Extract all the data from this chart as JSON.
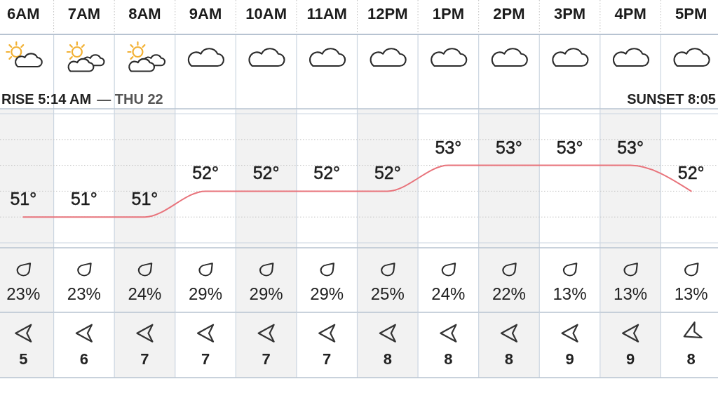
{
  "chart_data": [
    {
      "type": "line",
      "categories": [
        "6AM",
        "7AM",
        "8AM",
        "9AM",
        "10AM",
        "11AM",
        "12PM",
        "1PM",
        "2PM",
        "3PM",
        "4PM",
        "5PM"
      ],
      "values": [
        51,
        51,
        51,
        52,
        52,
        52,
        52,
        53,
        53,
        53,
        53,
        52
      ],
      "value_labels": [
        "51°",
        "51°",
        "51°",
        "52°",
        "52°",
        "52°",
        "52°",
        "53°",
        "53°",
        "53°",
        "53°",
        "52°"
      ],
      "color": "#e8737b",
      "ylim": [
        50,
        55
      ],
      "yticks": [
        {
          "value": 51,
          "label": null
        },
        {
          "value": 52,
          "label": null
        },
        {
          "value": 53,
          "label": null
        },
        {
          "value": 54,
          "label": null
        }
      ],
      "grid": "y",
      "tick_labels": "x",
      "annotations": [
        "RISE 5:14 AM",
        "— THU 22",
        "SUNSET 8:05"
      ],
      "bands": [
        {
          "axis": "x",
          "from": "6AM",
          "to": "6AM",
          "color": "#f2f2f2"
        },
        {
          "axis": "x",
          "from": "8AM",
          "to": "8AM",
          "color": "#f2f2f2"
        },
        {
          "axis": "x",
          "from": "10AM",
          "to": "10AM",
          "color": "#f2f2f2"
        },
        {
          "axis": "x",
          "from": "12PM",
          "to": "12PM",
          "color": "#f2f2f2"
        },
        {
          "axis": "x",
          "from": "2PM",
          "to": "2PM",
          "color": "#f2f2f2"
        },
        {
          "axis": "x",
          "from": "4PM",
          "to": "4PM",
          "color": "#f2f2f2"
        }
      ]
    },
    {
      "type": "other",
      "values": [
        23,
        23,
        24,
        29,
        29,
        29,
        25,
        24,
        22,
        13,
        13,
        13
      ],
      "value_labels": [
        "23%",
        "23%",
        "24%",
        "29%",
        "29%",
        "29%",
        "25%",
        "24%",
        "22%",
        "13%",
        "13%",
        "13%"
      ]
    },
    {
      "type": "other",
      "values": [
        5,
        6,
        7,
        7,
        7,
        7,
        8,
        8,
        8,
        9,
        9,
        8
      ],
      "data_labels": true
    }
  ]
}
